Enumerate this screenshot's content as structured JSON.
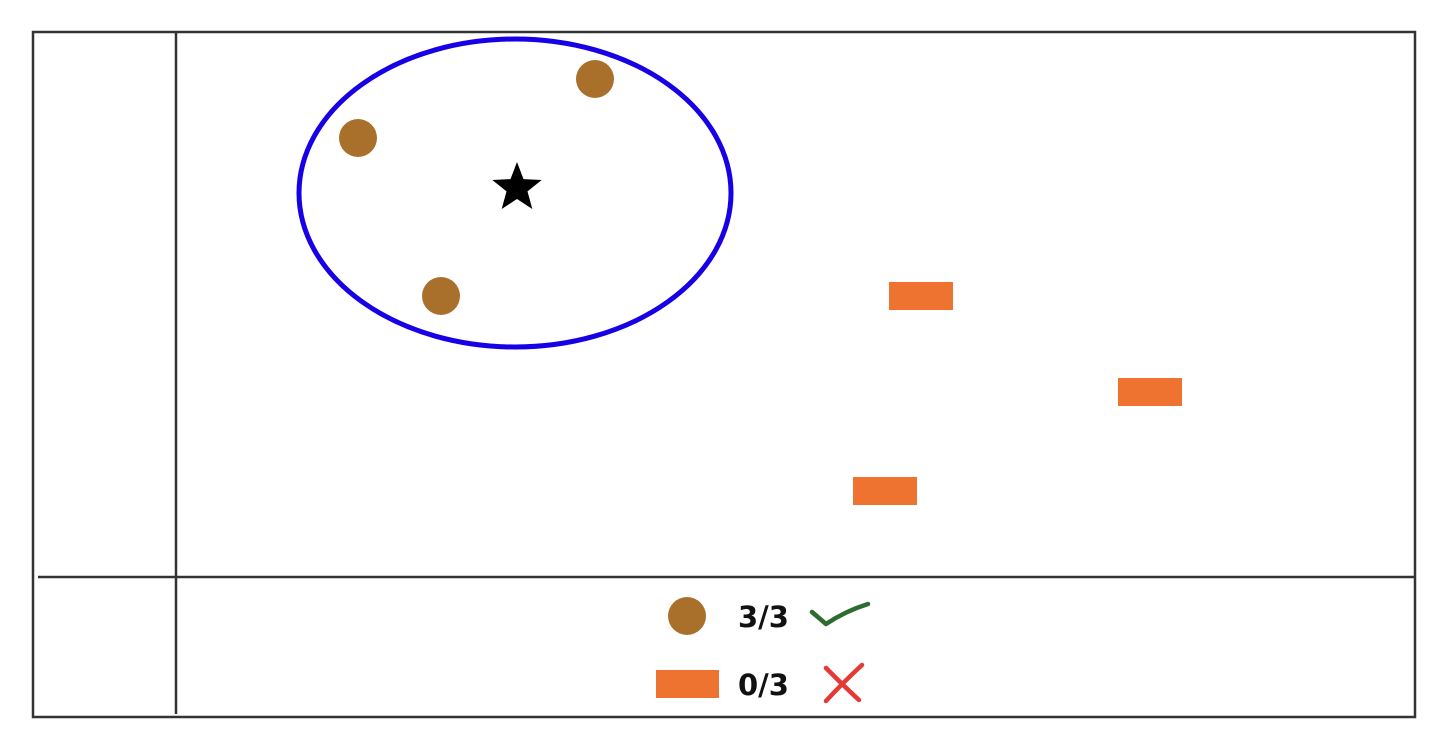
{
  "colors": {
    "frame": "#333333",
    "circle_marker": "#A8702A",
    "rect_marker": "#EE7230",
    "ellipse": "#1800E6",
    "star": "#000000",
    "check": "#2E6B2E",
    "cross": "#E53935"
  },
  "markers": {
    "center": "star",
    "group_in_ellipse": "circle",
    "group_outside": "rectangle"
  },
  "legend": {
    "circle_score": "3/3",
    "circle_status_icon": "check-icon",
    "rect_score": "0/3",
    "rect_status_icon": "cross-icon"
  }
}
